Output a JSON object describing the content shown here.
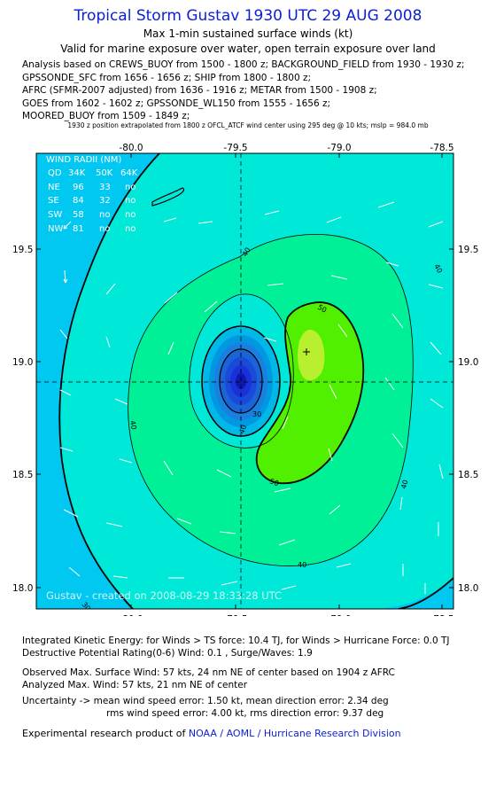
{
  "title": "Tropical Storm Gustav 1930 UTC 29 AUG 2008",
  "subtitle1": "Max 1-min sustained surface winds (kt)",
  "subtitle2": "Valid for marine exposure over water, open terrain exposure over land",
  "analysis_lines": [
    "Analysis based on  CREWS_BUOY from 1500 - 1800 z;  BACKGROUND_FIELD from 1930 - 1930 z;",
    "GPSSONDE_SFC from 1656 - 1656 z;  SHIP from 1800 - 1800 z;",
    "AFRC (SFMR-2007 adjusted) from 1636 - 1916 z;  METAR from 1500 - 1908 z;",
    "GOES from 1602 - 1602 z;  GPSSONDE_WL150 from 1555 - 1656 z;",
    "MOORED_BUOY from 1509 - 1849 z;"
  ],
  "extrapolation_note": "1930 z position extrapolated from 1800 z OFCL_ATCF wind center using 295 deg @ 10 kts; mslp = 984.0 mb",
  "map": {
    "lon_ticks": [
      "-80.0",
      "-79.5",
      "-79.0",
      "-78.5"
    ],
    "lat_ticks": [
      "19.5",
      "19.0",
      "18.5",
      "18.0"
    ],
    "lon_range": [
      -80.4,
      -78.35
    ],
    "lat_range": [
      17.9,
      19.92
    ],
    "center": {
      "lon": -79.5,
      "lat": 18.9
    },
    "max_wind_marker": {
      "lon": -79.12,
      "lat": 19.04
    },
    "contour_labels": [
      "40",
      "40",
      "40",
      "40",
      "40",
      "50",
      "50",
      "30",
      "40",
      "30"
    ],
    "wind_radii": {
      "title": "WIND RADII (NM)",
      "header": [
        "QD",
        "34K",
        "50K",
        "64K"
      ],
      "rows": [
        [
          "NE",
          "96",
          "33",
          "no"
        ],
        [
          "SE",
          "84",
          "32",
          "no"
        ],
        [
          "SW",
          "58",
          "no",
          "no"
        ],
        [
          "NW",
          "81",
          "no",
          "no"
        ]
      ]
    },
    "created_stamp": "Gustav - created on 2008-08-29 18:33:28 UTC"
  },
  "colors": {
    "c0_30": "#00c8f0",
    "c30_40": "#00e8d8",
    "c40_50": "#00f098",
    "c50_60": "#50f000",
    "c60_64": "#b8f030",
    "core": "#1a30d8",
    "title_blue": "#0a1fd6"
  },
  "footer": {
    "ike": "Integrated Kinetic Energy:  for Winds > TS force: 10.4 TJ,  for Winds > Hurricane Force: 0.0 TJ",
    "dpr": "Destructive Potential Rating(0-6)   Wind:  0.1 , Surge/Waves: 1.9",
    "observed": "Observed Max. Surface Wind: 57 kts, 24 nm NE of center based on 1904 z AFRC",
    "analyzed": "Analyzed Max. Wind: 57 kts, 21 nm NE of center",
    "uncert1": "Uncertainty -> mean wind speed error: 1.50 kt,   mean direction error: 2.34 deg",
    "uncert2": "rms wind speed error: 4.00 kt,   rms direction error: 9.37 deg",
    "product_prefix": "Experimental research product of ",
    "product_org": "NOAA / AOML / Hurricane Research Division"
  }
}
